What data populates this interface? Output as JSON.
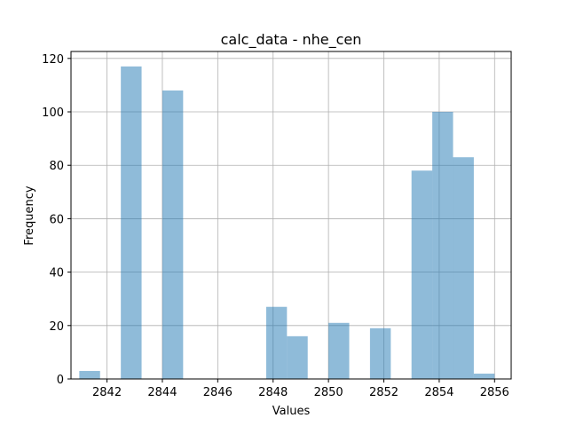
{
  "chart_data": {
    "type": "bar",
    "title": "calc_data - nhe_cen",
    "xlabel": "Values",
    "ylabel": "Frequency",
    "xlim": [
      2840.7,
      2856.6
    ],
    "ylim": [
      0,
      122.6
    ],
    "xticks": [
      2842,
      2844,
      2846,
      2848,
      2850,
      2852,
      2854,
      2856
    ],
    "yticks": [
      0,
      20,
      40,
      60,
      80,
      100,
      120
    ],
    "grid": true,
    "bar_color": "#1f77b4",
    "bar_alpha": 0.5,
    "bins": [
      {
        "x0": 2841.0,
        "x1": 2841.75,
        "count": 3
      },
      {
        "x0": 2842.5,
        "x1": 2843.25,
        "count": 117
      },
      {
        "x0": 2844.0,
        "x1": 2844.75,
        "count": 108
      },
      {
        "x0": 2847.75,
        "x1": 2848.5,
        "count": 27
      },
      {
        "x0": 2848.5,
        "x1": 2849.25,
        "count": 16
      },
      {
        "x0": 2850.0,
        "x1": 2850.75,
        "count": 21
      },
      {
        "x0": 2851.5,
        "x1": 2852.25,
        "count": 19
      },
      {
        "x0": 2853.0,
        "x1": 2853.75,
        "count": 78
      },
      {
        "x0": 2853.75,
        "x1": 2854.5,
        "count": 100
      },
      {
        "x0": 2854.5,
        "x1": 2855.25,
        "count": 83
      },
      {
        "x0": 2855.25,
        "x1": 2856.0,
        "count": 2
      }
    ]
  }
}
